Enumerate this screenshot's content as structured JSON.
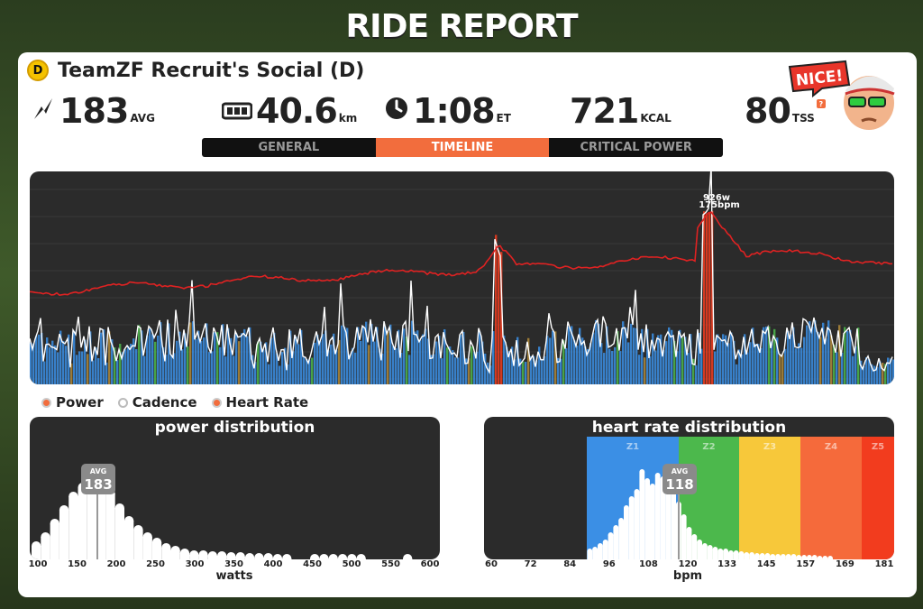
{
  "title": "RIDE REPORT",
  "event": {
    "category_badge": "D",
    "name": "TeamZF Recruit's Social (D)"
  },
  "stats": {
    "power": {
      "icon": "lightning-icon",
      "value": "183",
      "unit": "AVG"
    },
    "distance": {
      "icon": "odometer-icon",
      "value": "40.6",
      "unit": "km"
    },
    "time": {
      "icon": "clock-icon",
      "value": "1:08",
      "unit": "ET"
    },
    "calories": {
      "value": "721",
      "unit": "KCAL"
    },
    "tss": {
      "value": "80",
      "unit": "TSS",
      "help": "?"
    }
  },
  "avatar": {
    "bubble_text": "NICE!"
  },
  "tabs": [
    {
      "label": "GENERAL",
      "active": false
    },
    {
      "label": "TIMELINE",
      "active": true
    },
    {
      "label": "CRITICAL POWER",
      "active": false
    }
  ],
  "timeline": {
    "peak_power": "926w",
    "peak_hr": "175bpm"
  },
  "legend": {
    "power": "Power",
    "cadence": "Cadence",
    "heart_rate": "Heart Rate"
  },
  "power_distribution": {
    "title": "power distribution",
    "avg_label": "AVG",
    "avg_value": "183",
    "axis_label": "watts",
    "ticks": [
      "100",
      "150",
      "200",
      "250",
      "300",
      "350",
      "400",
      "450",
      "500",
      "550",
      "600"
    ]
  },
  "hr_distribution": {
    "title": "heart rate distribution",
    "avg_label": "AVG",
    "avg_value": "118",
    "axis_label": "bpm",
    "ticks": [
      "60",
      "72",
      "84",
      "96",
      "108",
      "120",
      "133",
      "145",
      "157",
      "169",
      "181"
    ],
    "zones": [
      "Z1",
      "Z2",
      "Z3",
      "Z4",
      "Z5"
    ]
  },
  "colors": {
    "accent": "#f26d3d",
    "hr_line": "#e02222",
    "zone1": "#3b8fe5",
    "zone2": "#4cb84c",
    "zone3": "#f7c83a",
    "zone4": "#f56a3b",
    "zone5": "#f23c1e"
  }
}
